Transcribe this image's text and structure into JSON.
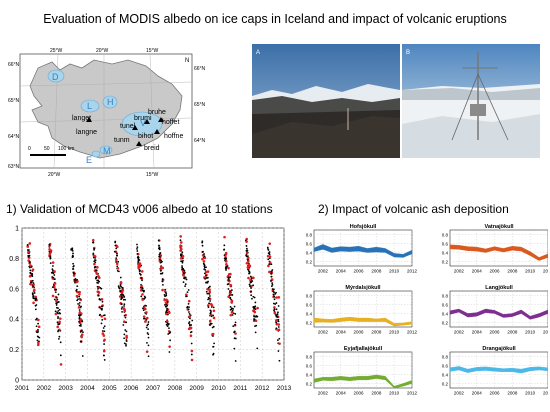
{
  "title": "Evaluation of MODIS albedo on ice caps in Iceland and impact of volcanic eruptions",
  "map": {
    "lon_labels": [
      "25°W",
      "20°W",
      "15°W"
    ],
    "lat_labels": [
      "66°N",
      "65°N",
      "64°N",
      "63°N"
    ],
    "north_label": "N",
    "scale_labels": [
      "0",
      "50",
      "100 km"
    ],
    "ice_cap_letters": [
      "D",
      "L",
      "H",
      "V",
      "M",
      "E"
    ],
    "stations": [
      "langet",
      "langne",
      "tunel",
      "brumi",
      "bruhe",
      "hoffet",
      "bihot",
      "hoffne",
      "tunm",
      "breid"
    ]
  },
  "photos": {
    "labels": [
      "A",
      "B"
    ]
  },
  "section1": {
    "title": "1) Validation of MCD43 v006 albedo at 10 stations",
    "yticks": [
      "0",
      "0.2",
      "0.4",
      "0.6",
      "0.8",
      "1"
    ],
    "xticks": [
      "2001",
      "2002",
      "2003",
      "2004",
      "2005",
      "2006",
      "2007",
      "2008",
      "2009",
      "2010",
      "2011",
      "2012",
      "2013"
    ]
  },
  "section2": {
    "title": "2) Impact of volcanic ash deposition",
    "yticks": [
      "0.2",
      "0.4",
      "0.6",
      "0.8"
    ],
    "xticks": [
      "2002",
      "2004",
      "2006",
      "2008",
      "2010",
      "2012"
    ]
  },
  "chart_data": [
    {
      "type": "scatter",
      "title": "1) Validation of MCD43 v006 albedo at 10 stations",
      "xlim": [
        2001,
        2013
      ],
      "ylim": [
        0,
        1
      ],
      "colors": {
        "station": "#000000",
        "modis": "#e02020"
      },
      "note": "dense seasonal point clouds, one melt-season drop per year"
    },
    {
      "type": "area",
      "x": [
        2001,
        2002,
        2003,
        2004,
        2005,
        2006,
        2007,
        2008,
        2009,
        2010,
        2011,
        2012
      ],
      "ylim": [
        0.1,
        0.9
      ],
      "panels": [
        {
          "name": "Hofsjökull",
          "color": "#2872b8",
          "lower": [
            0.42,
            0.47,
            0.4,
            0.43,
            0.42,
            0.43,
            0.4,
            0.41,
            0.4,
            0.3,
            0.29,
            0.37
          ],
          "upper": [
            0.5,
            0.58,
            0.5,
            0.53,
            0.52,
            0.54,
            0.49,
            0.52,
            0.49,
            0.38,
            0.36,
            0.45
          ]
        },
        {
          "name": "Vatnajökull",
          "color": "#d9591e",
          "lower": [
            0.48,
            0.47,
            0.44,
            0.43,
            0.4,
            0.45,
            0.41,
            0.45,
            0.43,
            0.33,
            0.22,
            0.29
          ],
          "upper": [
            0.57,
            0.56,
            0.53,
            0.52,
            0.48,
            0.53,
            0.49,
            0.54,
            0.52,
            0.42,
            0.29,
            0.37
          ]
        },
        {
          "name": "Mýrdalsjökull",
          "color": "#e6b020",
          "lower": [
            0.2,
            0.21,
            0.2,
            0.22,
            0.24,
            0.22,
            0.22,
            0.22,
            0.22,
            0.12,
            0.14,
            0.16
          ],
          "upper": [
            0.3,
            0.28,
            0.27,
            0.3,
            0.32,
            0.3,
            0.3,
            0.28,
            0.3,
            0.18,
            0.19,
            0.22
          ]
        },
        {
          "name": "Langjökull",
          "color": "#7e2d90",
          "lower": [
            0.38,
            0.43,
            0.32,
            0.34,
            0.42,
            0.4,
            0.31,
            0.33,
            0.4,
            0.27,
            0.32,
            0.4
          ],
          "upper": [
            0.46,
            0.5,
            0.4,
            0.42,
            0.5,
            0.47,
            0.38,
            0.4,
            0.48,
            0.34,
            0.4,
            0.48
          ]
        },
        {
          "name": "Eyjafjallajökull",
          "color": "#72ac30",
          "lower": [
            0.22,
            0.27,
            0.26,
            0.28,
            0.26,
            0.28,
            0.28,
            0.31,
            0.28,
            0.1,
            0.14,
            0.2
          ],
          "upper": [
            0.3,
            0.34,
            0.34,
            0.36,
            0.34,
            0.36,
            0.36,
            0.39,
            0.36,
            0.14,
            0.2,
            0.27
          ]
        },
        {
          "name": "Drangajökull",
          "color": "#4cb8e8",
          "lower": [
            0.47,
            0.5,
            0.44,
            0.48,
            0.49,
            0.47,
            0.46,
            0.46,
            0.43,
            0.48,
            0.5,
            0.48
          ],
          "upper": [
            0.55,
            0.58,
            0.52,
            0.56,
            0.57,
            0.55,
            0.53,
            0.54,
            0.52,
            0.56,
            0.57,
            0.55
          ]
        }
      ]
    }
  ]
}
